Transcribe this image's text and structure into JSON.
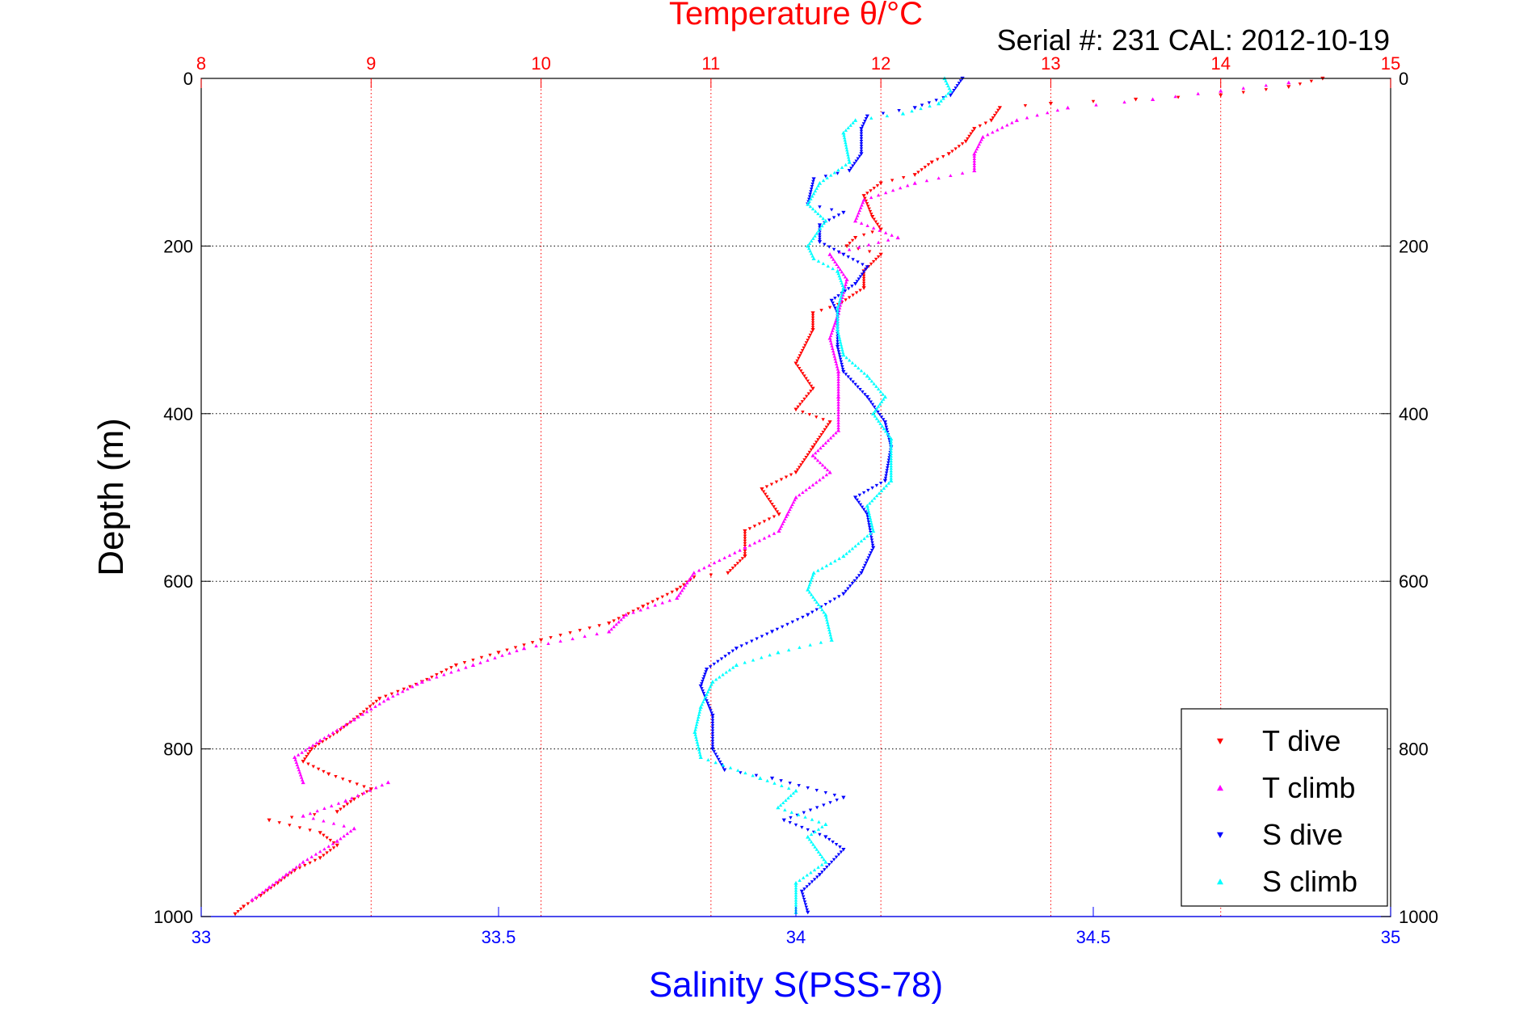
{
  "colors": {
    "temperature_axis": "#ff0000",
    "salinity_axis": "#0000ff",
    "t_dive": "#ff0000",
    "t_climb": "#ff00ff",
    "s_dive": "#0000ff",
    "s_climb": "#00ffff",
    "grid": "#000000",
    "axis": "#000000"
  },
  "chart_data": {
    "type": "scatter",
    "title": "Temperature θ/°C",
    "subtitle": "Serial #: 231  CAL: 2012-10-19",
    "xlabel": "Salinity S(PSS-78)",
    "ylabel": "Depth (m)",
    "temperature_axis": {
      "range": [
        8,
        15
      ],
      "ticks": [
        "8",
        "9",
        "10",
        "11",
        "12",
        "13",
        "14",
        "15"
      ],
      "position": "top"
    },
    "salinity_axis": {
      "range": [
        33,
        35
      ],
      "ticks": [
        "33",
        "33.5",
        "34",
        "34.5",
        "35"
      ],
      "position": "bottom"
    },
    "depth_axis": {
      "range": [
        0,
        1000
      ],
      "reversed": true,
      "ticks": [
        "0",
        "200",
        "400",
        "600",
        "800",
        "1000"
      ]
    },
    "grid": true,
    "legend_position": "bottom-right",
    "series": [
      {
        "name": "T dive",
        "axis": "temperature",
        "marker": "triangle-down",
        "points": [
          [
            14.6,
            0
          ],
          [
            14.4,
            10
          ],
          [
            14.0,
            20
          ],
          [
            13.5,
            25
          ],
          [
            13.0,
            30
          ],
          [
            12.7,
            35
          ],
          [
            12.65,
            50
          ],
          [
            12.55,
            60
          ],
          [
            12.5,
            75
          ],
          [
            12.4,
            90
          ],
          [
            12.3,
            100
          ],
          [
            12.2,
            115
          ],
          [
            12.0,
            125
          ],
          [
            11.9,
            140
          ],
          [
            11.95,
            165
          ],
          [
            12.0,
            180
          ],
          [
            11.85,
            190
          ],
          [
            11.8,
            200
          ],
          [
            12.0,
            210
          ],
          [
            11.9,
            230
          ],
          [
            11.9,
            250
          ],
          [
            11.75,
            270
          ],
          [
            11.6,
            280
          ],
          [
            11.6,
            300
          ],
          [
            11.5,
            340
          ],
          [
            11.6,
            370
          ],
          [
            11.5,
            395
          ],
          [
            11.7,
            410
          ],
          [
            11.6,
            440
          ],
          [
            11.5,
            470
          ],
          [
            11.3,
            490
          ],
          [
            11.4,
            520
          ],
          [
            11.2,
            540
          ],
          [
            11.2,
            570
          ],
          [
            11.1,
            590
          ],
          [
            10.9,
            595
          ],
          [
            10.8,
            610
          ],
          [
            10.6,
            630
          ],
          [
            10.4,
            650
          ],
          [
            10.0,
            670
          ],
          [
            9.75,
            685
          ],
          [
            9.5,
            700
          ],
          [
            9.3,
            720
          ],
          [
            9.05,
            740
          ],
          [
            8.9,
            765
          ],
          [
            8.8,
            780
          ],
          [
            8.65,
            800
          ],
          [
            8.6,
            815
          ],
          [
            8.75,
            830
          ],
          [
            9.0,
            848
          ],
          [
            8.9,
            860
          ],
          [
            8.8,
            875
          ],
          [
            8.4,
            885
          ],
          [
            8.7,
            900
          ],
          [
            8.8,
            915
          ],
          [
            8.7,
            930
          ],
          [
            8.55,
            945
          ],
          [
            8.45,
            960
          ],
          [
            8.35,
            975
          ],
          [
            8.25,
            988
          ],
          [
            8.2,
            997
          ]
        ]
      },
      {
        "name": "T climb",
        "axis": "temperature",
        "marker": "triangle-up",
        "points": [
          [
            14.4,
            5
          ],
          [
            14.0,
            15
          ],
          [
            13.6,
            25
          ],
          [
            13.1,
            35
          ],
          [
            12.8,
            50
          ],
          [
            12.6,
            70
          ],
          [
            12.55,
            90
          ],
          [
            12.55,
            110
          ],
          [
            12.2,
            125
          ],
          [
            11.9,
            145
          ],
          [
            11.85,
            170
          ],
          [
            12.1,
            190
          ],
          [
            11.7,
            210
          ],
          [
            11.8,
            240
          ],
          [
            11.75,
            280
          ],
          [
            11.7,
            310
          ],
          [
            11.75,
            350
          ],
          [
            11.75,
            380
          ],
          [
            11.75,
            420
          ],
          [
            11.6,
            450
          ],
          [
            11.7,
            470
          ],
          [
            11.5,
            500
          ],
          [
            11.45,
            520
          ],
          [
            11.4,
            540
          ],
          [
            11.2,
            560
          ],
          [
            10.9,
            590
          ],
          [
            10.8,
            620
          ],
          [
            10.5,
            640
          ],
          [
            10.4,
            660
          ],
          [
            9.9,
            680
          ],
          [
            9.6,
            700
          ],
          [
            9.3,
            720
          ],
          [
            9.1,
            740
          ],
          [
            8.9,
            765
          ],
          [
            8.7,
            790
          ],
          [
            8.55,
            810
          ],
          [
            8.6,
            840
          ],
          [
            9.1,
            840
          ],
          [
            8.85,
            862
          ],
          [
            8.6,
            880
          ],
          [
            8.9,
            895
          ],
          [
            8.8,
            910
          ],
          [
            8.6,
            935
          ],
          [
            8.5,
            950
          ],
          [
            8.4,
            965
          ],
          [
            8.3,
            980
          ]
        ]
      },
      {
        "name": "S dive",
        "axis": "salinity",
        "marker": "triangle-down",
        "points": [
          [
            34.28,
            0
          ],
          [
            34.26,
            20
          ],
          [
            34.2,
            35
          ],
          [
            34.12,
            45
          ],
          [
            34.11,
            60
          ],
          [
            34.11,
            90
          ],
          [
            34.09,
            110
          ],
          [
            34.03,
            120
          ],
          [
            34.02,
            150
          ],
          [
            34.08,
            160
          ],
          [
            34.04,
            175
          ],
          [
            34.04,
            195
          ],
          [
            34.08,
            210
          ],
          [
            34.12,
            225
          ],
          [
            34.1,
            245
          ],
          [
            34.06,
            265
          ],
          [
            34.07,
            280
          ],
          [
            34.07,
            320
          ],
          [
            34.08,
            350
          ],
          [
            34.12,
            380
          ],
          [
            34.15,
            410
          ],
          [
            34.16,
            440
          ],
          [
            34.15,
            480
          ],
          [
            34.1,
            500
          ],
          [
            34.12,
            520
          ],
          [
            34.13,
            560
          ],
          [
            34.11,
            590
          ],
          [
            34.08,
            615
          ],
          [
            34.02,
            640
          ],
          [
            33.96,
            660
          ],
          [
            33.9,
            680
          ],
          [
            33.85,
            705
          ],
          [
            33.84,
            725
          ],
          [
            33.86,
            760
          ],
          [
            33.86,
            800
          ],
          [
            33.88,
            825
          ],
          [
            33.96,
            835
          ],
          [
            34.08,
            858
          ],
          [
            33.98,
            885
          ],
          [
            34.05,
            905
          ],
          [
            34.08,
            920
          ],
          [
            34.04,
            950
          ],
          [
            34.01,
            970
          ],
          [
            34.02,
            995
          ]
        ]
      },
      {
        "name": "S climb",
        "axis": "salinity",
        "marker": "triangle-up",
        "points": [
          [
            34.25,
            0
          ],
          [
            34.26,
            15
          ],
          [
            34.24,
            30
          ],
          [
            34.18,
            42
          ],
          [
            34.1,
            50
          ],
          [
            34.08,
            65
          ],
          [
            34.09,
            100
          ],
          [
            34.04,
            125
          ],
          [
            34.02,
            150
          ],
          [
            34.05,
            170
          ],
          [
            34.02,
            200
          ],
          [
            34.03,
            215
          ],
          [
            34.07,
            230
          ],
          [
            34.08,
            250
          ],
          [
            34.07,
            275
          ],
          [
            34.07,
            300
          ],
          [
            34.08,
            330
          ],
          [
            34.12,
            355
          ],
          [
            34.15,
            380
          ],
          [
            34.13,
            400
          ],
          [
            34.16,
            430
          ],
          [
            34.16,
            480
          ],
          [
            34.12,
            510
          ],
          [
            34.13,
            540
          ],
          [
            34.08,
            570
          ],
          [
            34.03,
            590
          ],
          [
            34.02,
            610
          ],
          [
            34.05,
            640
          ],
          [
            34.06,
            670
          ],
          [
            33.97,
            685
          ],
          [
            33.9,
            700
          ],
          [
            33.86,
            720
          ],
          [
            33.84,
            750
          ],
          [
            33.83,
            780
          ],
          [
            33.84,
            810
          ],
          [
            33.94,
            835
          ],
          [
            34.0,
            850
          ],
          [
            33.97,
            870
          ],
          [
            34.05,
            890
          ],
          [
            34.02,
            905
          ],
          [
            34.05,
            935
          ],
          [
            34.0,
            960
          ],
          [
            34.0,
            995
          ]
        ]
      }
    ]
  }
}
